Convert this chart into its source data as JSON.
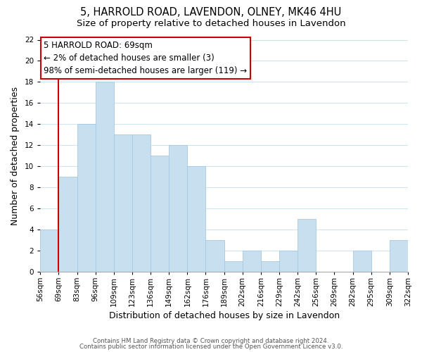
{
  "title": "5, HARROLD ROAD, LAVENDON, OLNEY, MK46 4HU",
  "subtitle": "Size of property relative to detached houses in Lavendon",
  "xlabel": "Distribution of detached houses by size in Lavendon",
  "ylabel": "Number of detached properties",
  "bin_labels": [
    "56sqm",
    "69sqm",
    "83sqm",
    "96sqm",
    "109sqm",
    "123sqm",
    "136sqm",
    "149sqm",
    "162sqm",
    "176sqm",
    "189sqm",
    "202sqm",
    "216sqm",
    "229sqm",
    "242sqm",
    "256sqm",
    "269sqm",
    "282sqm",
    "295sqm",
    "309sqm",
    "322sqm"
  ],
  "bar_heights": [
    4,
    9,
    14,
    18,
    13,
    13,
    11,
    12,
    10,
    3,
    1,
    2,
    1,
    2,
    5,
    0,
    0,
    2,
    0,
    3
  ],
  "bar_color": "#c8dff0",
  "bar_edge_color": "#a8c8e0",
  "highlight_bin_index": 1,
  "highlight_color": "#cc0000",
  "annotation_text": "5 HARROLD ROAD: 69sqm\n← 2% of detached houses are smaller (3)\n98% of semi-detached houses are larger (119) →",
  "annotation_box_edge_color": "#cc0000",
  "ylim": [
    0,
    22
  ],
  "yticks": [
    0,
    2,
    4,
    6,
    8,
    10,
    12,
    14,
    16,
    18,
    20,
    22
  ],
  "footer_line1": "Contains HM Land Registry data © Crown copyright and database right 2024.",
  "footer_line2": "Contains public sector information licensed under the Open Government Licence v3.0.",
  "background_color": "#ffffff",
  "grid_color": "#d0e4f0",
  "title_fontsize": 10.5,
  "subtitle_fontsize": 9.5,
  "axis_label_fontsize": 9,
  "tick_fontsize": 7.5,
  "annotation_fontsize": 8.5
}
